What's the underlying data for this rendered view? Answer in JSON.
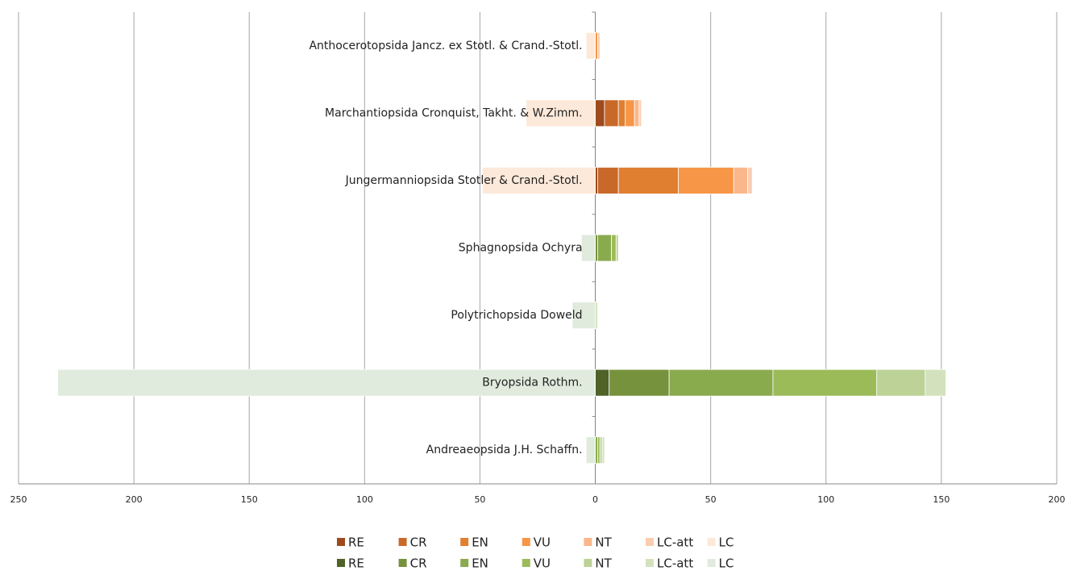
{
  "chart_data": {
    "type": "diverging_stacked_bar",
    "categories": [
      "Anthocerotopsida Jancz. ex Stotl. & Crand.-Stotl.",
      "Marchantiopsida Cronquist, Takht. & W.Zimm.",
      "Jungermanniopsida Stotler & Crand.-Stotl.",
      "Sphagnopsida Ochyra",
      "Polytrichopsida Doweld",
      "Bryopsida Rothm.",
      "Andreaeopsida J.H. Schaffn."
    ],
    "series": [
      {
        "name": "RE",
        "color": "#9c4a1e",
        "values": [
          null,
          4,
          1,
          null,
          null,
          null,
          null
        ]
      },
      {
        "name": "CR",
        "color": "#c8692a",
        "values": [
          null,
          6,
          9,
          null,
          null,
          null,
          null
        ]
      },
      {
        "name": "EN",
        "color": "#e07f30",
        "values": [
          null,
          3,
          26,
          null,
          null,
          null,
          null
        ]
      },
      {
        "name": "VU",
        "color": "#f79646",
        "values": [
          1,
          4,
          24,
          null,
          null,
          null,
          null
        ]
      },
      {
        "name": "NT",
        "color": "#fab78a",
        "values": [
          null,
          2,
          6,
          null,
          null,
          null,
          null
        ]
      },
      {
        "name": "LC-att",
        "color": "#f9cdb0",
        "values": [
          1,
          1,
          2,
          null,
          null,
          null,
          null
        ]
      },
      {
        "name": "LC",
        "color": "#fde9d9",
        "values": [
          -4,
          -30,
          -49,
          null,
          null,
          null,
          null
        ]
      },
      {
        "name": "RE",
        "color": "#4f6228",
        "values": [
          null,
          null,
          null,
          null,
          null,
          6,
          null
        ]
      },
      {
        "name": "CR",
        "color": "#76923c",
        "values": [
          null,
          null,
          null,
          1,
          null,
          26,
          null
        ]
      },
      {
        "name": "EN",
        "color": "#8aaa4e",
        "values": [
          null,
          null,
          null,
          6,
          null,
          45,
          1
        ]
      },
      {
        "name": "VU",
        "color": "#9bbb59",
        "values": [
          null,
          null,
          null,
          2,
          null,
          45,
          1
        ]
      },
      {
        "name": "NT",
        "color": "#bcd296",
        "values": [
          null,
          null,
          null,
          1,
          null,
          21,
          1
        ]
      },
      {
        "name": "LC-att",
        "color": "#d3e2bd",
        "values": [
          null,
          null,
          null,
          null,
          1,
          9,
          1
        ]
      },
      {
        "name": "LC",
        "color": "#e0ebdd",
        "values": [
          null,
          null,
          null,
          -6,
          -10,
          -233,
          -4
        ]
      }
    ],
    "xlim": [
      -250,
      200
    ],
    "xticks": [
      {
        "value": -250,
        "label": "250"
      },
      {
        "value": -200,
        "label": "200"
      },
      {
        "value": -150,
        "label": "150"
      },
      {
        "value": -100,
        "label": "100"
      },
      {
        "value": -50,
        "label": "50"
      },
      0,
      50,
      100,
      150,
      200
    ],
    "grid": true
  }
}
